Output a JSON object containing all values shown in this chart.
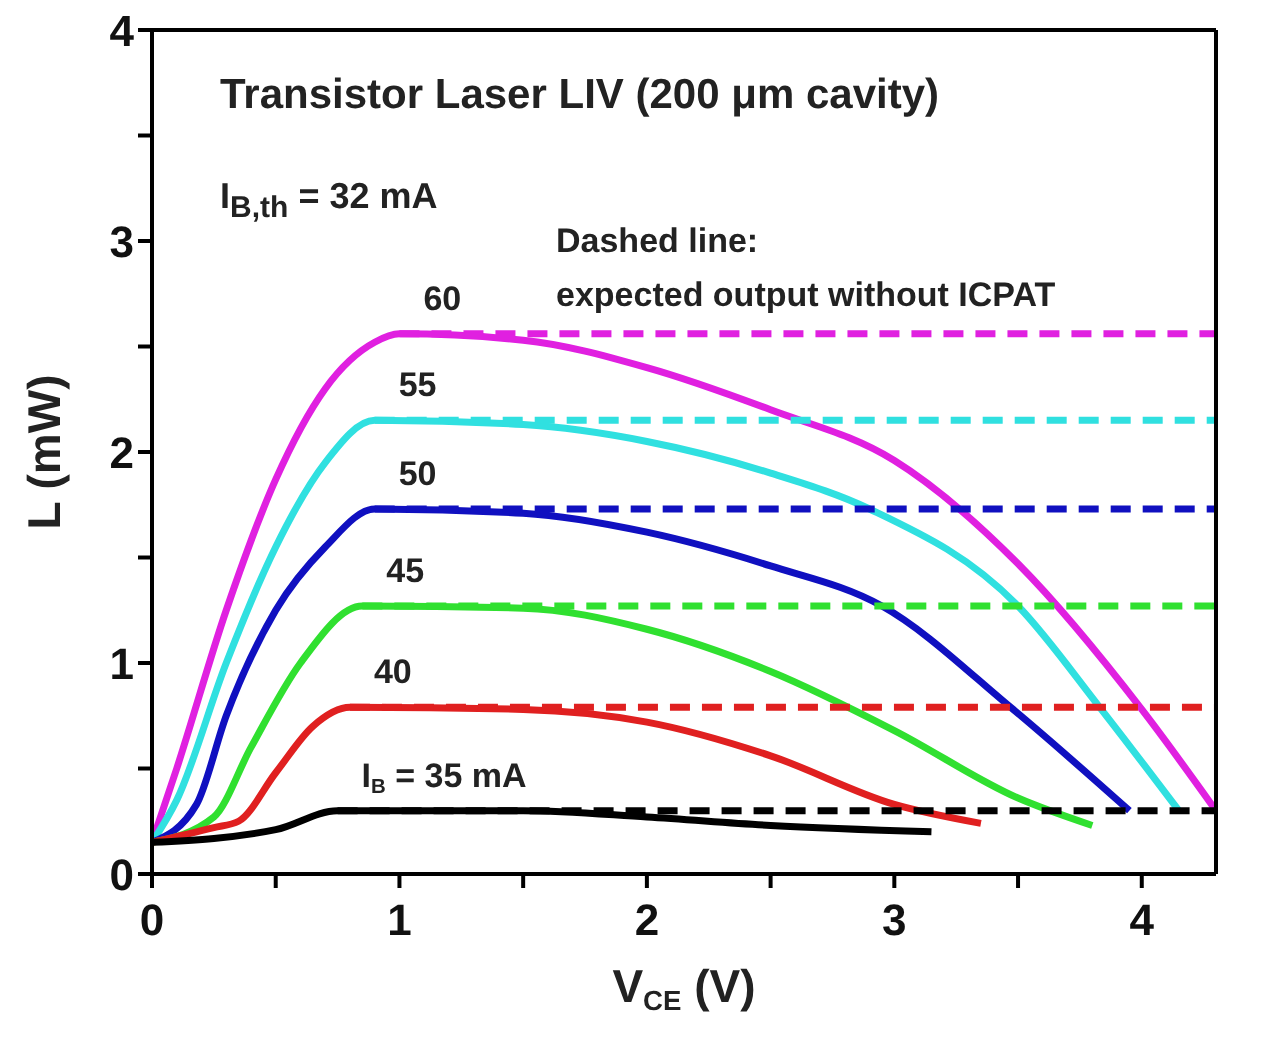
{
  "chart_data": {
    "type": "line",
    "title": "Transistor Laser LIV (200 μm cavity)",
    "xlabel": "V$_{CE}$ (V)",
    "ylabel": "L (mW)",
    "annotations": [
      "I$_{B,th}$ = 32 mA",
      "Dashed line:",
      "expected output without ICPAT"
    ],
    "xlim": [
      0,
      4.3
    ],
    "xticks": [
      0,
      {
        "value": 0.5,
        "label": null
      },
      1,
      {
        "value": 1.5,
        "label": null
      },
      2,
      {
        "value": 2.5,
        "label": null
      },
      3,
      {
        "value": 3.5,
        "label": null
      },
      4
    ],
    "ylim": [
      0,
      4
    ],
    "yticks": [
      0,
      {
        "value": 0.5,
        "label": null
      },
      1,
      {
        "value": 1.5,
        "label": null
      },
      2,
      {
        "value": 2.5,
        "label": null
      },
      3,
      {
        "value": 3.5,
        "label": null
      },
      4
    ],
    "grid": false,
    "legend": false,
    "marker": "none",
    "series": [
      {
        "name": "60",
        "color": "#e020e0",
        "line_style": "solid",
        "x": [
          0,
          0.1,
          0.3,
          0.5,
          0.7,
          0.9,
          1.0,
          1.5,
          2.0,
          2.5,
          3.0,
          3.5,
          4.0,
          4.3
        ],
        "values": [
          0.15,
          0.5,
          1.25,
          1.87,
          2.3,
          2.52,
          2.56,
          2.53,
          2.4,
          2.2,
          1.96,
          1.47,
          0.78,
          0.3
        ]
      },
      {
        "name": "55",
        "color": "#30e0e0",
        "line_style": "solid",
        "x": [
          0,
          0.1,
          0.3,
          0.5,
          0.7,
          0.9,
          1.5,
          2.0,
          2.5,
          2.9,
          3.5,
          3.83,
          4.15
        ],
        "values": [
          0.15,
          0.35,
          1.0,
          1.55,
          1.95,
          2.15,
          2.13,
          2.05,
          1.9,
          1.73,
          1.27,
          0.79,
          0.3
        ]
      },
      {
        "name": "50",
        "color": "#1010c0",
        "line_style": "solid",
        "x": [
          0,
          0.18,
          0.3,
          0.5,
          0.7,
          0.9,
          1.5,
          2.0,
          2.5,
          2.95,
          3.47,
          3.95
        ],
        "values": [
          0.15,
          0.33,
          0.75,
          1.25,
          1.55,
          1.73,
          1.71,
          1.62,
          1.46,
          1.27,
          0.79,
          0.3
        ]
      },
      {
        "name": "45",
        "color": "#30e030",
        "line_style": "solid",
        "x": [
          0,
          0.25,
          0.4,
          0.6,
          0.85,
          1.5,
          2.0,
          2.5,
          3.0,
          3.5,
          3.8
        ],
        "values": [
          0.15,
          0.27,
          0.6,
          1.0,
          1.27,
          1.26,
          1.16,
          0.96,
          0.68,
          0.36,
          0.23
        ]
      },
      {
        "name": "40",
        "color": "#e02020",
        "line_style": "solid",
        "x": [
          0,
          0.25,
          0.35,
          0.5,
          0.65,
          0.8,
          1.5,
          2.0,
          2.5,
          3.0,
          3.35
        ],
        "values": [
          0.15,
          0.22,
          0.25,
          0.48,
          0.7,
          0.79,
          0.78,
          0.72,
          0.56,
          0.33,
          0.24
        ]
      },
      {
        "name": "I$_{B}$ = 35 mA",
        "color": "#000000",
        "line_style": "solid",
        "x": [
          0,
          0.5,
          0.75,
          1.5,
          2.0,
          2.5,
          3.15
        ],
        "values": [
          0.15,
          0.21,
          0.3,
          0.3,
          0.27,
          0.23,
          0.2
        ]
      },
      {
        "color": "#e020e0",
        "line_style": "dashed",
        "x": [
          1.0,
          4.3
        ],
        "values": [
          2.56,
          2.56
        ]
      },
      {
        "color": "#30e0e0",
        "line_style": "dashed",
        "x": [
          0.9,
          4.3
        ],
        "values": [
          2.15,
          2.15
        ]
      },
      {
        "color": "#1010c0",
        "line_style": "dashed",
        "x": [
          0.9,
          4.3
        ],
        "values": [
          1.73,
          1.73
        ]
      },
      {
        "color": "#30e030",
        "line_style": "dashed",
        "x": [
          0.85,
          4.3
        ],
        "values": [
          1.27,
          1.27
        ]
      },
      {
        "color": "#e02020",
        "line_style": "dashed",
        "x": [
          0.8,
          4.3
        ],
        "values": [
          0.79,
          0.79
        ]
      },
      {
        "color": "#000000",
        "line_style": "dashed",
        "x": [
          0.75,
          4.3
        ],
        "values": [
          0.3,
          0.3
        ]
      }
    ]
  }
}
